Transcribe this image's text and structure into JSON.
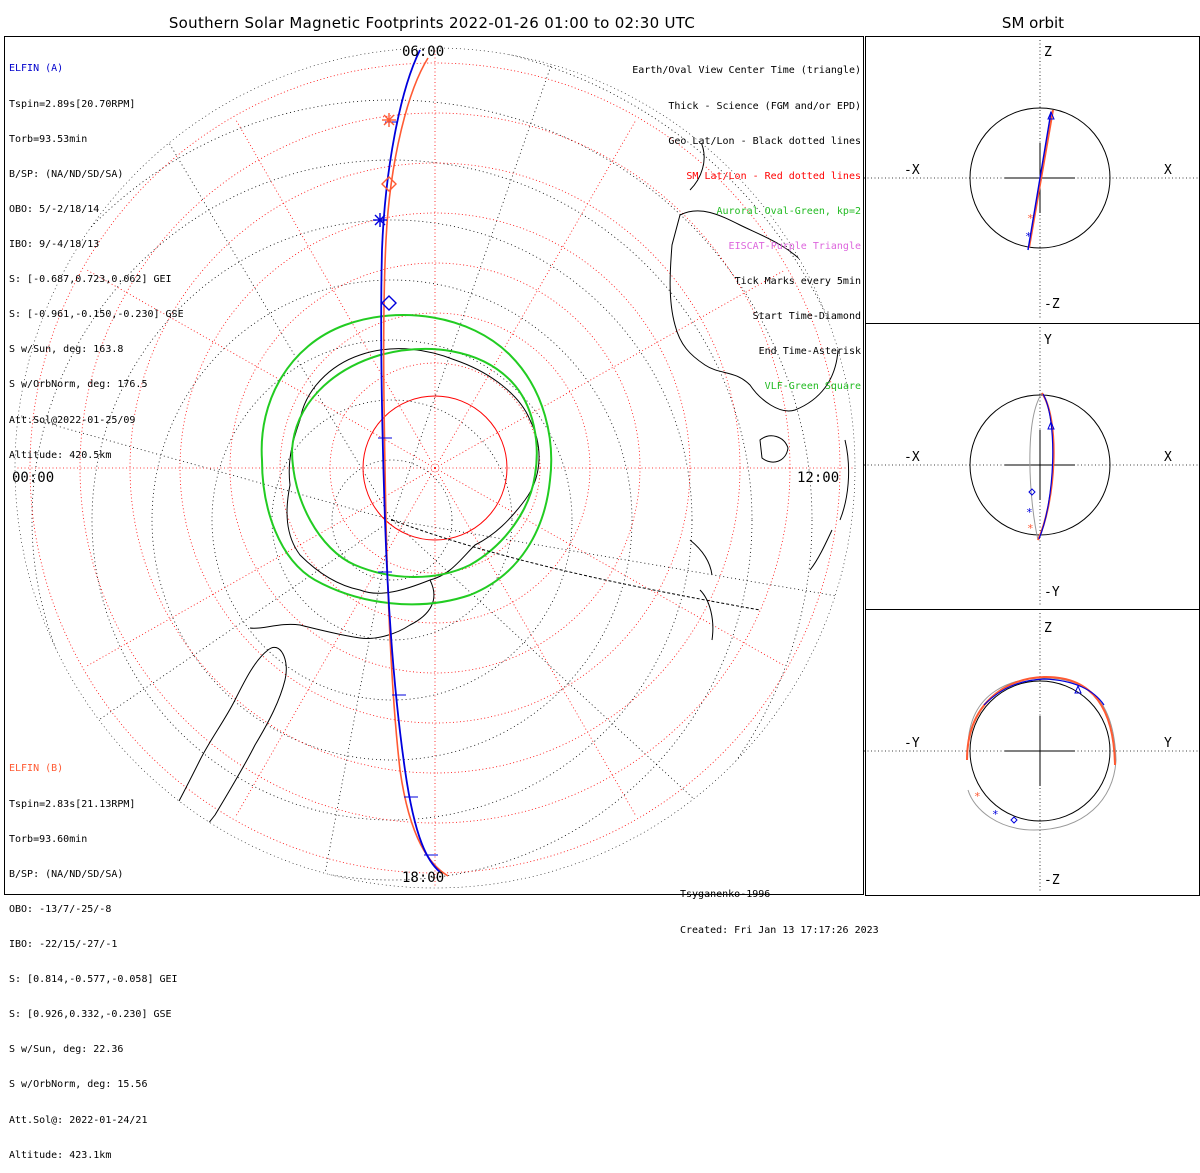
{
  "title": "Southern Solar Magnetic Footprints 2022-01-26 01:00 to 02:30 UTC",
  "side_title": "SM orbit",
  "time_labels": {
    "top": "06:00",
    "bottom": "18:00",
    "left": "00:00",
    "right": "12:00"
  },
  "elfin_a": {
    "name": "ELFIN (A)",
    "color": "#0000cc",
    "lines": [
      "Tspin=2.89s[20.70RPM]",
      "Torb=93.53min",
      "B/SP: (NA/ND/SD/SA)",
      "OBO: 5/-2/18/14",
      "IBO: 9/-4/18/13",
      "S: [-0.687,0.723,0.062] GEI",
      "S: [-0.961,-0.150,-0.230] GSE",
      "S w/Sun, deg: 163.8",
      "S w/OrbNorm, deg: 176.5",
      "Att.Sol@2022-01-25/09",
      "Altitude: 420.5km"
    ]
  },
  "elfin_b": {
    "name": "ELFIN (B)",
    "color": "#ff5a33",
    "lines": [
      "Tspin=2.83s[21.13RPM]",
      "Torb=93.60min",
      "B/SP: (NA/ND/SD/SA)",
      "OBO: -13/7/-25/-8",
      "IBO: -22/15/-27/-1",
      "S: [0.814,-0.577,-0.058] GEI",
      "S: [0.926,0.332,-0.230] GSE",
      "S w/Sun, deg: 22.36",
      "S w/OrbNorm, deg: 15.56",
      "Att.Sol@: 2022-01-24/21",
      "Altitude: 423.1km"
    ]
  },
  "legend": [
    {
      "text": "Earth/Oval View Center Time (triangle)",
      "color": "#000000"
    },
    {
      "text": "Thick - Science (FGM and/or EPD)",
      "color": "#000000"
    },
    {
      "text": "Geo Lat/Lon - Black dotted lines",
      "color": "#000000"
    },
    {
      "text": "SM Lat/Lon - Red dotted lines",
      "color": "#ff0000"
    },
    {
      "text": "Auroral Oval-Green, kp=2",
      "color": "#22bb22"
    },
    {
      "text": "EISCAT-Purple Triangle",
      "color": "#dd66dd"
    },
    {
      "text": "Tick Marks every 5min",
      "color": "#000000"
    },
    {
      "text": "Start Time-Diamond",
      "color": "#000000"
    },
    {
      "text": "End Time-Asterisk",
      "color": "#000000"
    },
    {
      "text": "VLF-Green Square",
      "color": "#22bb22"
    }
  ],
  "credit": {
    "model": "Tsyganenko-1996",
    "created": "Created: Fri Jan 13 17:17:26 2023"
  },
  "panels": [
    {
      "left": "-X",
      "right": "X",
      "top": "Z",
      "bottom": "-Z"
    },
    {
      "left": "-X",
      "right": "X",
      "top": "Y",
      "bottom": "-Y"
    },
    {
      "left": "-Y",
      "right": "Y",
      "top": "Z",
      "bottom": "-Z"
    }
  ],
  "colors": {
    "oval": "#22cc22",
    "sm_grid": "#ff0000",
    "geo_grid": "#000000",
    "orbit_a": "#0000dd",
    "orbit_b": "#ff5a33"
  }
}
